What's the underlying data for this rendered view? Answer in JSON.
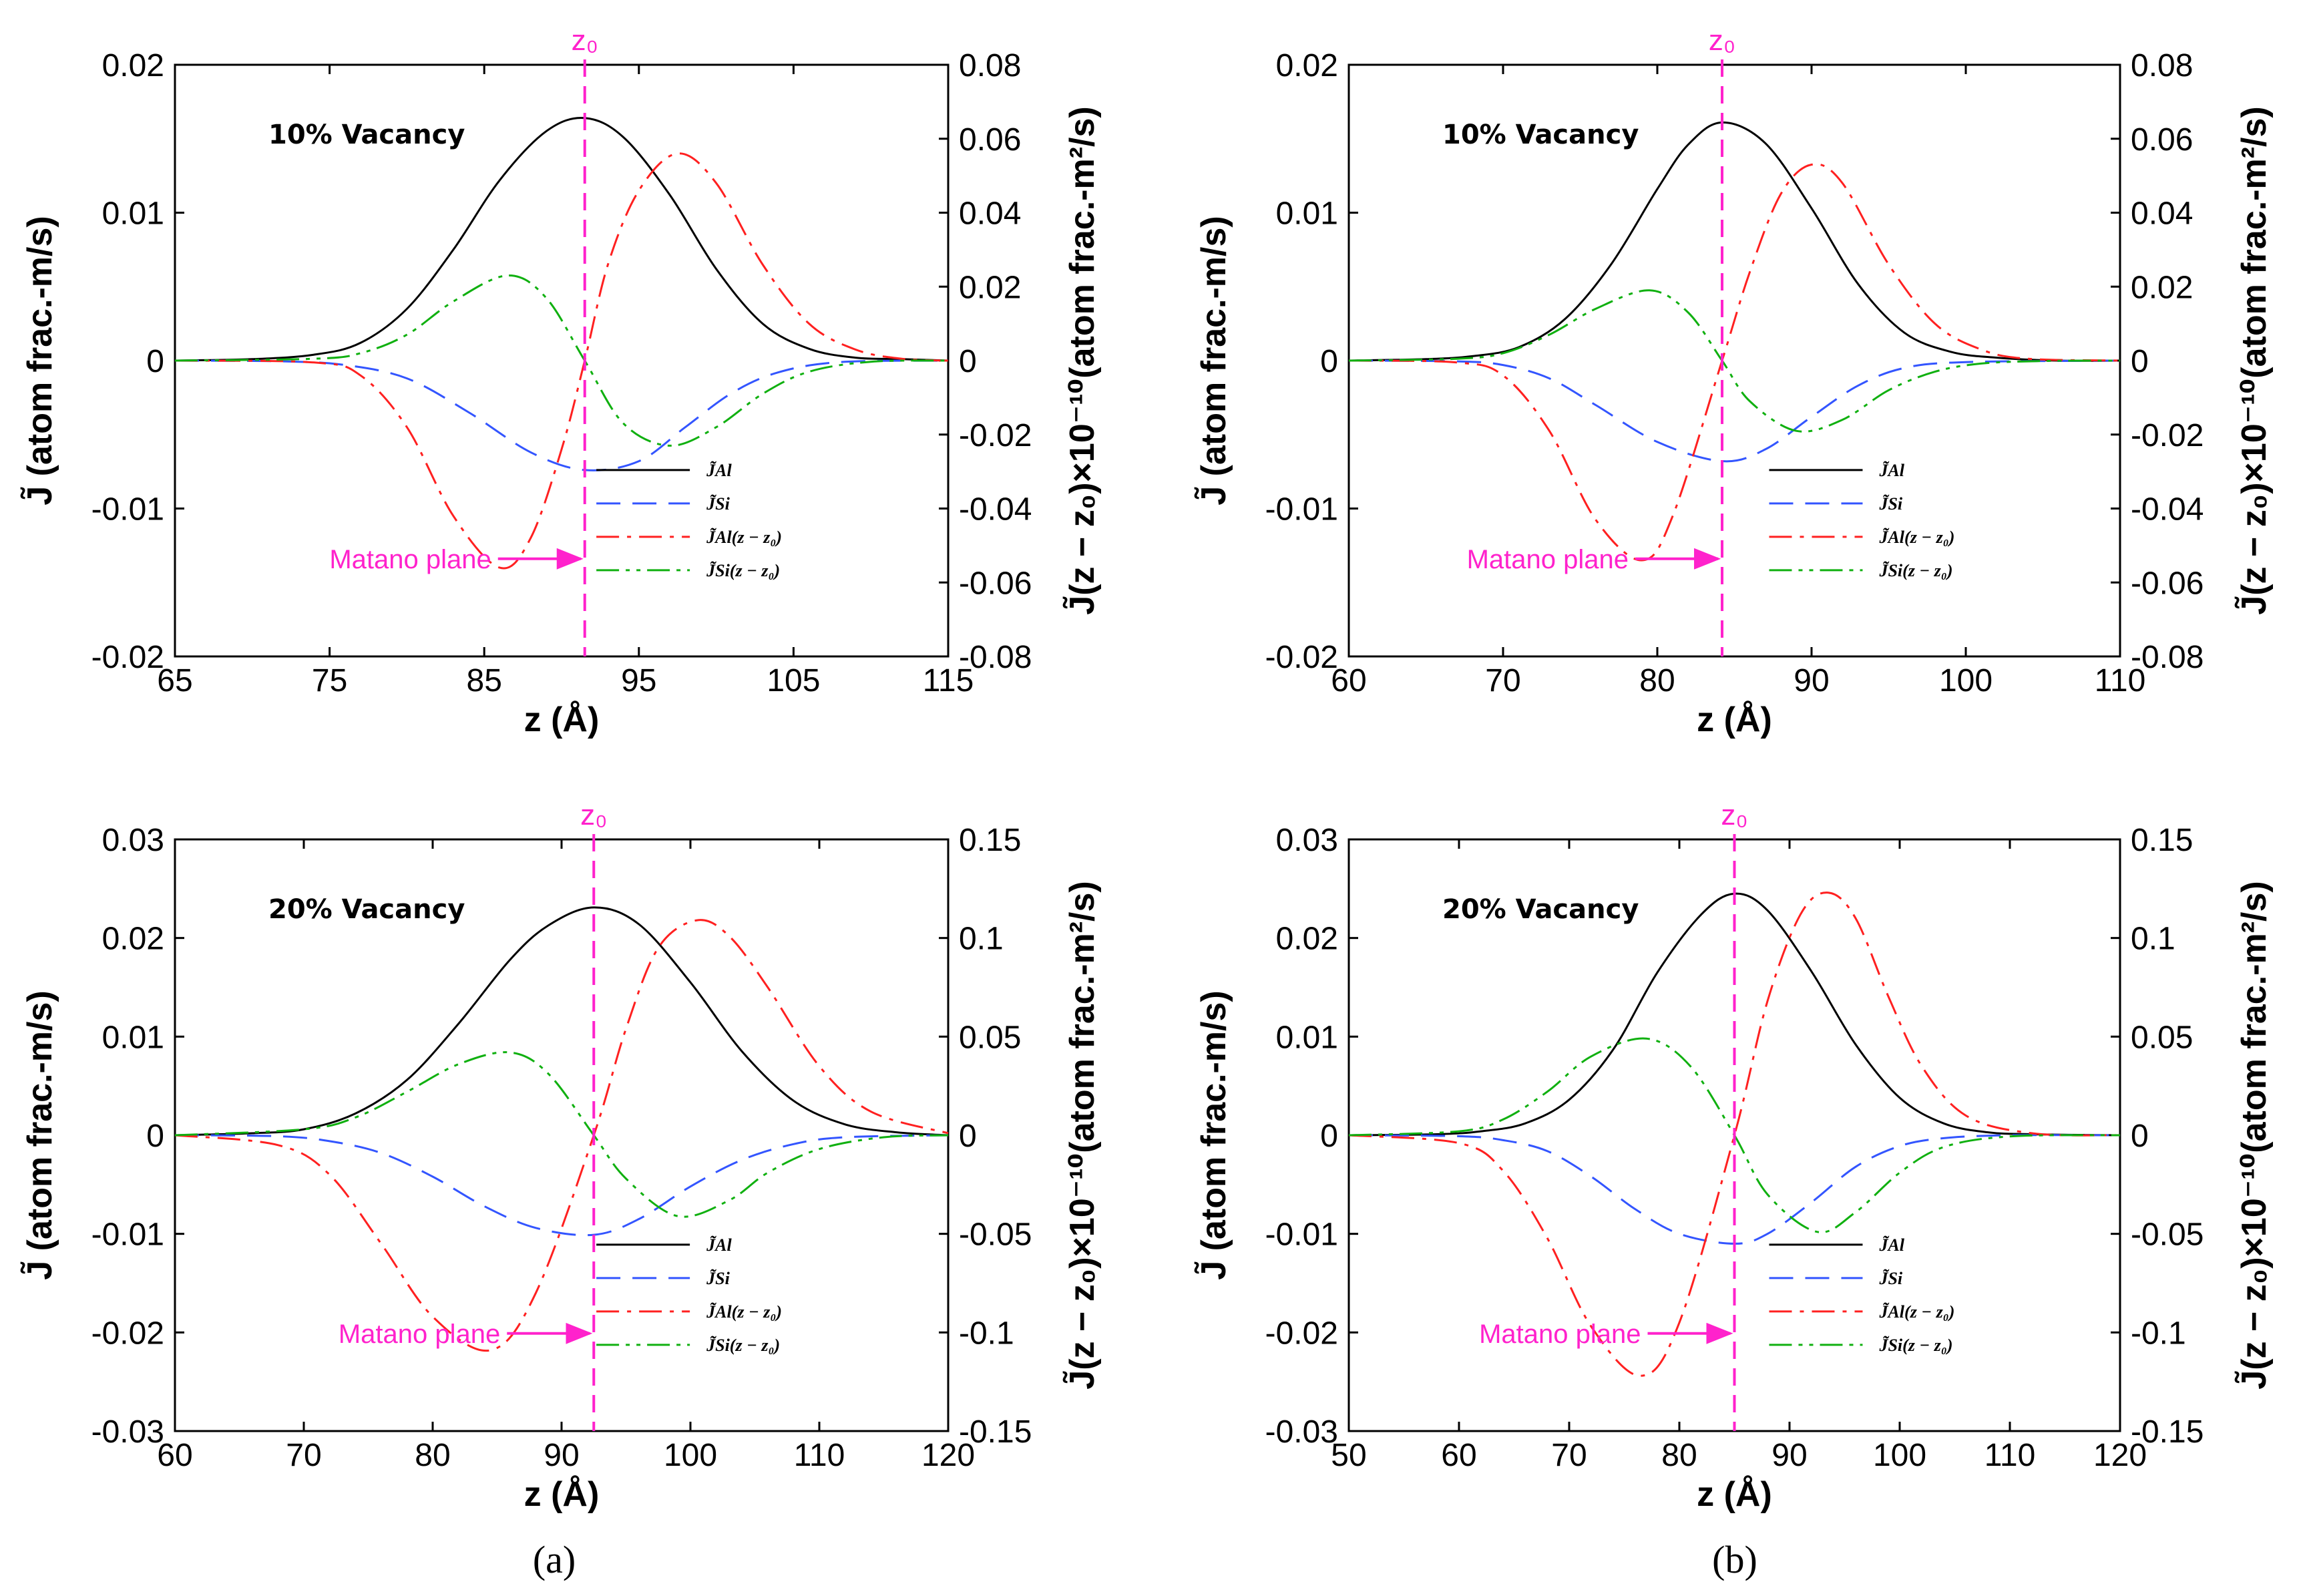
{
  "figure_labels": [
    "(a)",
    "(b)"
  ],
  "axis_titles": {
    "x": "z (Å)",
    "y_left": "J̃ (atom frac.-m/s)",
    "y_right": "J̃(z − z₀)×10⁻¹⁰(atom frac.-m²/s)"
  },
  "matano_label": "Matano plane",
  "z0_label": "z₀",
  "legend": [
    "J̃Al",
    "J̃Si",
    "J̃Al(z − z₀)",
    "J̃Si(z − z₀)"
  ],
  "colors": {
    "J_Al": "#000000",
    "J_Si": "#3355ff",
    "J_Al_z": "#ff2020",
    "J_Si_z": "#10b010",
    "matano": "#ff22cc"
  },
  "chart_data": [
    {
      "type": "line",
      "annotation": "10% Vacancy",
      "xlim": [
        65,
        115
      ],
      "x_ticks": [
        "65",
        "75",
        "85",
        "95",
        "105",
        "115"
      ],
      "ylim_left": [
        -0.02,
        0.02
      ],
      "y_left_ticks": [
        "-0.02",
        "-0.01",
        "0",
        "0.01",
        "0.02"
      ],
      "ylim_right": [
        -0.08,
        0.08
      ],
      "y_right_ticks": [
        "-0.08",
        "-0.06",
        "-0.04",
        "-0.02",
        "0",
        "0.02",
        "0.04",
        "0.06",
        "0.08"
      ],
      "z0": 91.5,
      "series": [
        {
          "name": "J_Al",
          "axis": "left",
          "style": "solid",
          "color": "#000000",
          "x": [
            65,
            70,
            74,
            77,
            80,
            83,
            86,
            89,
            91.5,
            94,
            97,
            100,
            103,
            106,
            109,
            112,
            115
          ],
          "y": [
            0,
            0.0001,
            0.0004,
            0.0012,
            0.0035,
            0.0075,
            0.0122,
            0.0155,
            0.0164,
            0.0151,
            0.0112,
            0.0062,
            0.0025,
            0.0008,
            0.0002,
            0.0001,
            0
          ]
        },
        {
          "name": "J_Si",
          "axis": "left",
          "style": "dash",
          "color": "#3355ff",
          "x": [
            65,
            72,
            76,
            80,
            84,
            88,
            91.5,
            95,
            98,
            101,
            104,
            108,
            115
          ],
          "y": [
            0,
            -5e-05,
            -0.0003,
            -0.0012,
            -0.0035,
            -0.0062,
            -0.0074,
            -0.0068,
            -0.0045,
            -0.0022,
            -0.0008,
            -0.0001,
            0
          ]
        },
        {
          "name": "J_Al(z-z0)",
          "axis": "right",
          "style": "dashdot",
          "color": "#ff2020",
          "x": [
            65,
            74,
            77,
            80,
            83,
            86,
            88,
            90,
            91.5,
            93,
            95,
            97.5,
            100,
            103,
            106,
            109,
            112,
            115
          ],
          "y": [
            0,
            -0.0005,
            -0.004,
            -0.018,
            -0.042,
            -0.056,
            -0.048,
            -0.024,
            0,
            0.026,
            0.046,
            0.056,
            0.048,
            0.026,
            0.01,
            0.003,
            0.0005,
            0
          ]
        },
        {
          "name": "J_Si(z-z0)",
          "axis": "right",
          "style": "dashdotdot",
          "color": "#10b010",
          "x": [
            65,
            74,
            77,
            80,
            83,
            86.5,
            89,
            91.5,
            94,
            97,
            100,
            103,
            106,
            110,
            115
          ],
          "y": [
            0,
            0.0005,
            0.002,
            0.007,
            0.016,
            0.023,
            0.017,
            0,
            -0.017,
            -0.023,
            -0.018,
            -0.009,
            -0.003,
            -0.0003,
            0
          ]
        }
      ]
    },
    {
      "type": "line",
      "annotation": "10% Vacancy",
      "xlim": [
        60,
        110
      ],
      "x_ticks": [
        "60",
        "70",
        "80",
        "90",
        "100",
        "110"
      ],
      "ylim_left": [
        -0.02,
        0.02
      ],
      "y_left_ticks": [
        "-0.02",
        "-0.01",
        "0",
        "0.01",
        "0.02"
      ],
      "ylim_right": [
        -0.08,
        0.08
      ],
      "y_right_ticks": [
        "-0.08",
        "-0.06",
        "-0.04",
        "-0.02",
        "0",
        "0.02",
        "0.04",
        "0.06",
        "0.08"
      ],
      "z0": 84.2,
      "series": [
        {
          "name": "J_Al",
          "axis": "left",
          "style": "solid",
          "color": "#000000",
          "x": [
            60,
            65,
            68,
            71,
            74,
            77,
            80,
            82,
            84.2,
            87,
            90,
            93,
            96,
            99,
            102,
            106,
            110
          ],
          "y": [
            0,
            0.0001,
            0.0003,
            0.0009,
            0.0028,
            0.0065,
            0.0116,
            0.0146,
            0.0161,
            0.0147,
            0.0103,
            0.0052,
            0.0019,
            0.0006,
            0.0002,
            0,
            0
          ]
        },
        {
          "name": "J_Si",
          "axis": "left",
          "style": "dash",
          "color": "#3355ff",
          "x": [
            60,
            67,
            70,
            73,
            76,
            80,
            84.2,
            87,
            90,
            93,
            96,
            100,
            110
          ],
          "y": [
            0,
            -5e-05,
            -0.0003,
            -0.0012,
            -0.003,
            -0.0055,
            -0.0068,
            -0.006,
            -0.0038,
            -0.0017,
            -0.0005,
            -0.0001,
            0
          ]
        },
        {
          "name": "J_Al(z-z0)",
          "axis": "right",
          "style": "dashdot",
          "color": "#ff2020",
          "x": [
            60,
            67,
            70,
            73,
            76,
            79,
            81,
            84.2,
            86,
            88,
            90,
            92,
            95,
            98,
            101,
            104,
            110
          ],
          "y": [
            0,
            -0.0005,
            -0.004,
            -0.019,
            -0.043,
            -0.054,
            -0.042,
            0,
            0.024,
            0.045,
            0.053,
            0.048,
            0.026,
            0.01,
            0.003,
            0.0005,
            0
          ]
        },
        {
          "name": "J_Si(z-z0)",
          "axis": "right",
          "style": "dashdotdot",
          "color": "#10b010",
          "x": [
            60,
            67,
            70,
            73,
            76,
            79.5,
            82,
            84.2,
            86,
            89,
            92,
            95,
            98,
            101,
            105,
            110
          ],
          "y": [
            0,
            0.0005,
            0.002,
            0.007,
            0.014,
            0.019,
            0.013,
            0,
            -0.011,
            -0.019,
            -0.016,
            -0.008,
            -0.003,
            -0.0008,
            -0.0001,
            0
          ]
        }
      ]
    },
    {
      "type": "line",
      "annotation": "20% Vacancy",
      "xlim": [
        60,
        120
      ],
      "x_ticks": [
        "60",
        "70",
        "80",
        "90",
        "100",
        "110",
        "120"
      ],
      "ylim_left": [
        -0.03,
        0.03
      ],
      "y_left_ticks": [
        "-0.03",
        "-0.02",
        "-0.01",
        "0",
        "0.01",
        "0.02",
        "0.03"
      ],
      "ylim_right": [
        -0.15,
        0.15
      ],
      "y_right_ticks": [
        "-0.15",
        "-0.1",
        "-0.05",
        "0",
        "0.05",
        "0.1",
        "0.15"
      ],
      "z0": 92.5,
      "series": [
        {
          "name": "J_Al",
          "axis": "left",
          "style": "solid",
          "color": "#000000",
          "x": [
            60,
            66,
            70,
            74,
            78,
            82,
            86,
            89,
            92.5,
            96,
            100,
            104,
            108,
            112,
            116,
            120
          ],
          "y": [
            0,
            0.0002,
            0.0006,
            0.0022,
            0.0056,
            0.0113,
            0.0178,
            0.0213,
            0.0231,
            0.0214,
            0.0155,
            0.0085,
            0.0035,
            0.0011,
            0.0003,
            0
          ]
        },
        {
          "name": "J_Si",
          "axis": "left",
          "style": "dash",
          "color": "#3355ff",
          "x": [
            60,
            68,
            72,
            76,
            80,
            84,
            88,
            92.5,
            96,
            100,
            104,
            108,
            112,
            120
          ],
          "y": [
            0,
            -0.0001,
            -0.0006,
            -0.0018,
            -0.0042,
            -0.0072,
            -0.0094,
            -0.0101,
            -0.0085,
            -0.0052,
            -0.0025,
            -0.0009,
            -0.0002,
            0
          ]
        },
        {
          "name": "J_Al(z-z0)",
          "axis": "right",
          "style": "dashdot",
          "color": "#ff2020",
          "x": [
            60,
            68,
            72,
            76,
            80,
            84.5,
            88,
            92.5,
            95,
            97.5,
            100.5,
            103,
            106,
            110,
            114,
            120
          ],
          "y": [
            0,
            -0.005,
            -0.02,
            -0.055,
            -0.092,
            -0.109,
            -0.08,
            0,
            0.054,
            0.095,
            0.109,
            0.101,
            0.075,
            0.035,
            0.012,
            0.001
          ]
        },
        {
          "name": "J_Si(z-z0)",
          "axis": "right",
          "style": "dashdotdot",
          "color": "#10b010",
          "x": [
            60,
            70,
            74,
            78,
            82,
            86,
            89,
            92.5,
            95,
            99,
            103,
            106,
            110,
            115,
            120
          ],
          "y": [
            0,
            0.003,
            0.009,
            0.022,
            0.036,
            0.042,
            0.031,
            0,
            -0.022,
            -0.041,
            -0.033,
            -0.019,
            -0.007,
            -0.001,
            0
          ]
        }
      ]
    },
    {
      "type": "line",
      "annotation": "20% Vacancy",
      "xlim": [
        50,
        120
      ],
      "x_ticks": [
        "50",
        "60",
        "70",
        "80",
        "90",
        "100",
        "110",
        "120"
      ],
      "ylim_left": [
        -0.03,
        0.03
      ],
      "y_left_ticks": [
        "-0.03",
        "-0.02",
        "-0.01",
        "0",
        "0.01",
        "0.02",
        "0.03"
      ],
      "ylim_right": [
        -0.15,
        0.15
      ],
      "y_right_ticks": [
        "-0.15",
        "-0.1",
        "-0.05",
        "0",
        "0.05",
        "0.1",
        "0.15"
      ],
      "z0": 85,
      "series": [
        {
          "name": "J_Al",
          "axis": "left",
          "style": "solid",
          "color": "#000000",
          "x": [
            50,
            58,
            62,
            66,
            70,
            74,
            78,
            82,
            85,
            88,
            92,
            96,
            100,
            104,
            108,
            112,
            120
          ],
          "y": [
            0,
            0.0001,
            0.0004,
            0.0012,
            0.0036,
            0.0087,
            0.0165,
            0.0224,
            0.0245,
            0.0228,
            0.0166,
            0.0092,
            0.0038,
            0.0012,
            0.0003,
            0.0001,
            0
          ]
        },
        {
          "name": "J_Si",
          "axis": "left",
          "style": "dash",
          "color": "#3355ff",
          "x": [
            50,
            60,
            64,
            68,
            72,
            76,
            80,
            85,
            88,
            92,
            96,
            100,
            104,
            110,
            120
          ],
          "y": [
            0,
            -0.0001,
            -0.0005,
            -0.0016,
            -0.0042,
            -0.0075,
            -0.01,
            -0.011,
            -0.01,
            -0.0068,
            -0.0032,
            -0.0011,
            -0.0003,
            0,
            0
          ]
        },
        {
          "name": "J_Al(z-z0)",
          "axis": "right",
          "style": "dashdot",
          "color": "#ff2020",
          "x": [
            50,
            60,
            64,
            68,
            72,
            76.5,
            80,
            85,
            88,
            91,
            93.5,
            96,
            99,
            102,
            106,
            112,
            120
          ],
          "y": [
            0,
            -0.004,
            -0.018,
            -0.052,
            -0.097,
            -0.122,
            -0.095,
            0,
            0.068,
            0.112,
            0.123,
            0.11,
            0.07,
            0.035,
            0.01,
            0.001,
            0
          ]
        },
        {
          "name": "J_Si(z-z0)",
          "axis": "right",
          "style": "dashdotdot",
          "color": "#10b010",
          "x": [
            50,
            60,
            64,
            68,
            72,
            77,
            81,
            85,
            88,
            92.5,
            96,
            100,
            104,
            110,
            120
          ],
          "y": [
            0,
            0.002,
            0.008,
            0.022,
            0.04,
            0.049,
            0.035,
            0,
            -0.03,
            -0.049,
            -0.039,
            -0.019,
            -0.006,
            -0.0006,
            0
          ]
        }
      ]
    }
  ]
}
